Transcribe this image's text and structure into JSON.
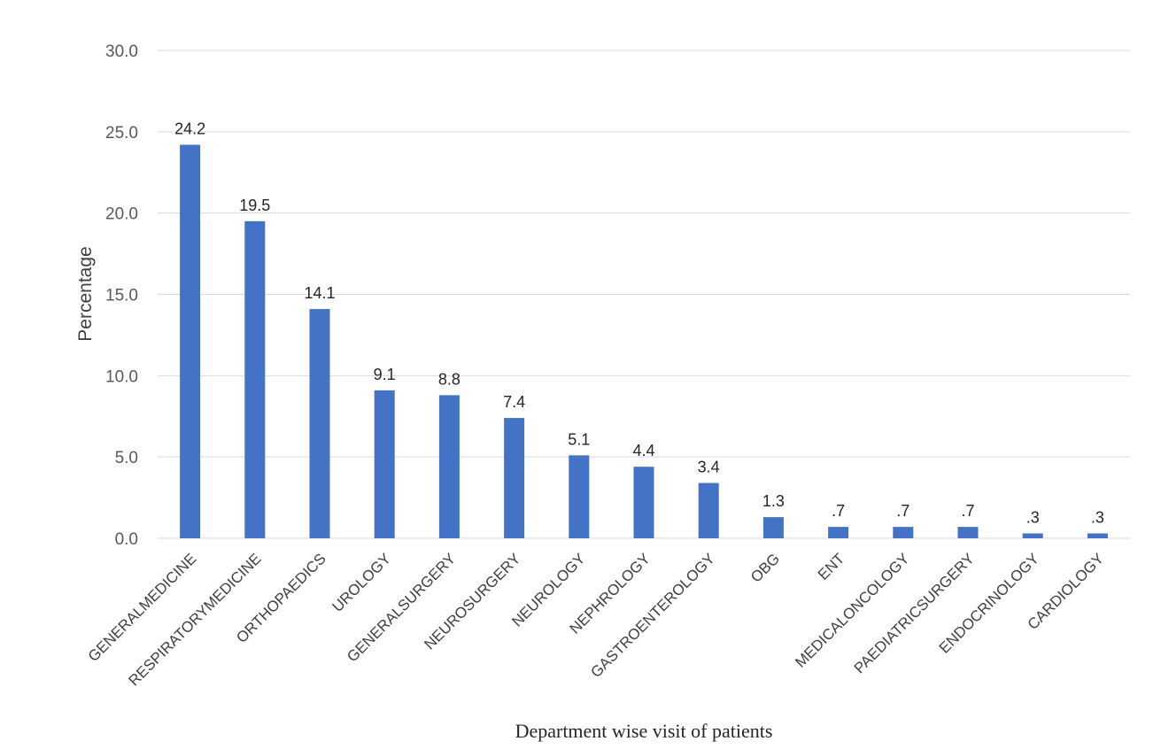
{
  "chart_data": {
    "type": "bar",
    "categories": [
      "GENERALMEDICINE",
      "RESPIRATORYMEDICINE",
      "ORTHOPAEDICS",
      "UROLOGY",
      "GENERALSURGERY",
      "NEUROSURGERY",
      "NEUROLOGY",
      "NEPHROLOGY",
      "GASTROENTEROLOGY",
      "OBG",
      "ENT",
      "MEDICALONCOLOGY",
      "PAEDIATRICSURGERY",
      "ENDOCRINOLOGY",
      "CARDIOLOGY"
    ],
    "values": [
      24.2,
      19.5,
      14.1,
      9.1,
      8.8,
      7.4,
      5.1,
      4.4,
      3.4,
      1.3,
      0.7,
      0.7,
      0.7,
      0.3,
      0.3
    ],
    "data_labels": [
      "24.2",
      "19.5",
      "14.1",
      "9.1",
      "8.8",
      "7.4",
      "5.1",
      "4.4",
      "3.4",
      "1.3",
      ".7",
      ".7",
      ".7",
      ".3",
      ".3"
    ],
    "ytick_labels": [
      "0.0",
      "5.0",
      "10.0",
      "15.0",
      "20.0",
      "25.0",
      "30.0"
    ],
    "xlabel": "Department wise visit of patients",
    "ylabel": "Percentage",
    "ylim": [
      0,
      30
    ],
    "grid": true,
    "bar_color": "#4472c4"
  }
}
